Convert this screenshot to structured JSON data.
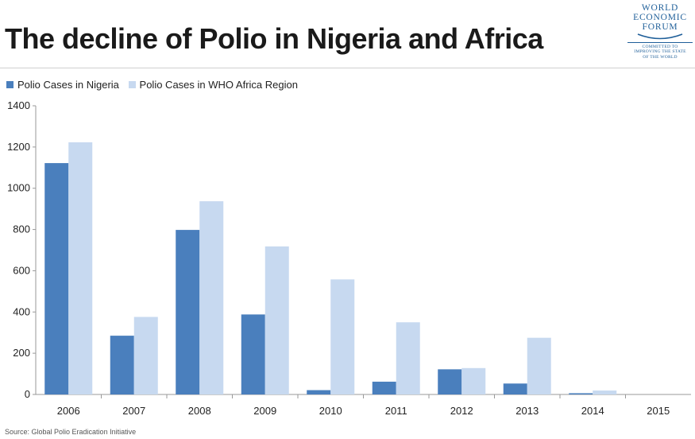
{
  "title": "The decline of Polio in Nigeria and Africa",
  "logo": {
    "lines": [
      "WORLD",
      "ECONOMIC",
      "FORUM"
    ],
    "tagline": [
      "COMMITTED TO",
      "IMPROVING THE STATE",
      "OF THE WORLD"
    ]
  },
  "source": "Source: Global Polio Eradication Initiative",
  "colors": {
    "nigeria": "#4a7fbd",
    "africa": "#c7d9f0",
    "axis": "#999999"
  },
  "chart_data": {
    "type": "bar",
    "categories": [
      "2006",
      "2007",
      "2008",
      "2009",
      "2010",
      "2011",
      "2012",
      "2013",
      "2014",
      "2015"
    ],
    "series": [
      {
        "name": "Polio Cases in Nigeria",
        "values": [
          1122,
          285,
          798,
          388,
          21,
          62,
          122,
          53,
          6,
          0
        ]
      },
      {
        "name": "Polio Cases in WHO Africa Region",
        "values": [
          1223,
          376,
          937,
          718,
          558,
          350,
          128,
          275,
          19,
          0
        ]
      }
    ],
    "yticks": [
      0,
      200,
      400,
      600,
      800,
      1000,
      1200,
      1400
    ],
    "ylim": [
      0,
      1400
    ],
    "legend_position": "top-left",
    "grid": false
  }
}
